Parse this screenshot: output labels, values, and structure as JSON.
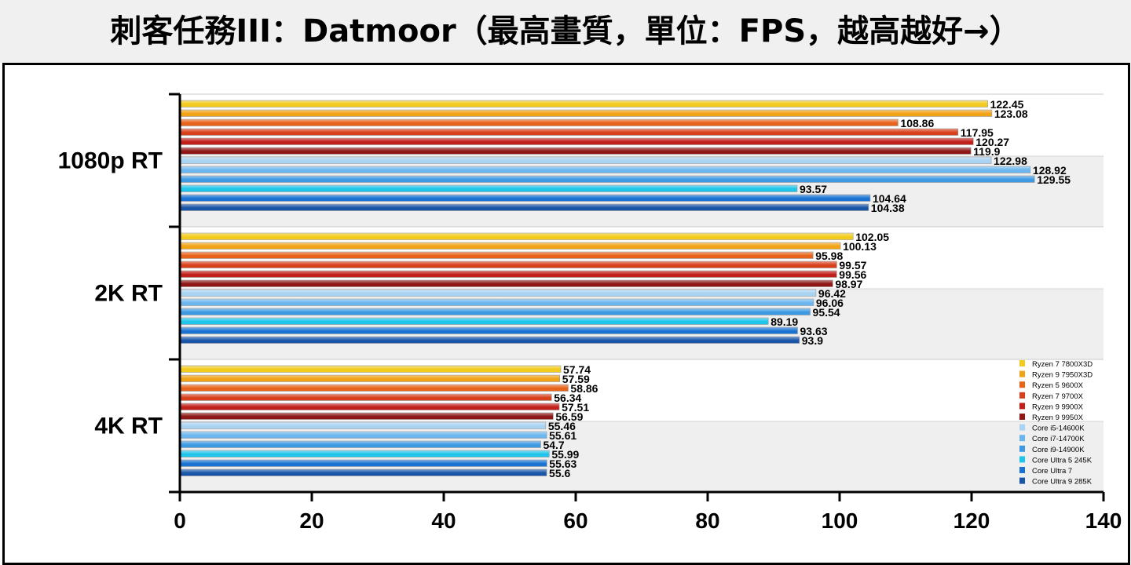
{
  "title": "刺客任務III：Datmoor（最高畫質，單位：FPS，越高越好→）",
  "colors": {
    "Ryzen 7 7800X3D": "#f2cb1d",
    "Ryzen 9 7950X3D": "#f1a316",
    "Ryzen 5 9600X": "#e8641a",
    "Ryzen 7 9700X": "#d8401c",
    "Ryzen 9 9900X": "#c11f1a",
    "Ryzen 9 9950X": "#8e1616",
    "Core i5-14600K": "#a9d3f3",
    "Core i7-14700K": "#6bb6ee",
    "Core i9-14900K": "#3d9ae2",
    "Core Ultra 5 245K": "#1ec4ea",
    "Core Ultra 7": "#1a73d2",
    "Core Ultra 9 285K": "#1854a8"
  },
  "chart_data": {
    "type": "bar",
    "orientation": "horizontal",
    "title": "刺客任務III：Datmoor（最高畫質，單位：FPS，越高越好→）",
    "categories": [
      "1080p RT",
      "2K RT",
      "4K RT"
    ],
    "xlim": [
      0,
      140
    ],
    "xticks": [
      "0",
      "20",
      "40",
      "60",
      "80",
      "100",
      "120",
      "140"
    ],
    "xticks_values": [
      0,
      20,
      40,
      60,
      80,
      100,
      120,
      140
    ],
    "legend_position": "bottom-right",
    "series": [
      {
        "name": "Ryzen 7 7800X3D",
        "values": [
          122.45,
          102.05,
          57.74
        ]
      },
      {
        "name": "Ryzen 9 7950X3D",
        "values": [
          123.08,
          100.13,
          57.59
        ]
      },
      {
        "name": "Ryzen 5 9600X",
        "values": [
          108.86,
          95.98,
          58.86
        ]
      },
      {
        "name": "Ryzen 7 9700X",
        "values": [
          117.95,
          99.57,
          56.34
        ]
      },
      {
        "name": "Ryzen 9 9900X",
        "values": [
          120.27,
          99.56,
          57.51
        ]
      },
      {
        "name": "Ryzen 9 9950X",
        "values": [
          119.9,
          98.97,
          56.59
        ]
      },
      {
        "name": "Core i5-14600K",
        "values": [
          122.98,
          96.42,
          55.46
        ]
      },
      {
        "name": "Core i7-14700K",
        "values": [
          128.92,
          96.06,
          55.61
        ]
      },
      {
        "name": "Core i9-14900K",
        "values": [
          129.55,
          95.54,
          54.7
        ]
      },
      {
        "name": "Core Ultra 5 245K",
        "values": [
          93.57,
          89.19,
          55.99
        ]
      },
      {
        "name": "Core Ultra 7",
        "values": [
          104.64,
          93.63,
          55.63
        ]
      },
      {
        "name": "Core Ultra 9 285K",
        "values": [
          104.38,
          93.9,
          55.6
        ]
      }
    ],
    "value_labels": [
      [
        "122.45",
        "102.05",
        "57.74"
      ],
      [
        "123.08",
        "100.13",
        "57.59"
      ],
      [
        "108.86",
        "95.98",
        "58.86"
      ],
      [
        "117.95",
        "99.57",
        "56.34"
      ],
      [
        "120.27",
        "99.56",
        "57.51"
      ],
      [
        "119.9",
        "98.97",
        "56.59"
      ],
      [
        "122.98",
        "96.42",
        "55.46"
      ],
      [
        "128.92",
        "96.06",
        "55.61"
      ],
      [
        "129.55",
        "95.54",
        "54.7"
      ],
      [
        "93.57",
        "89.19",
        "55.99"
      ],
      [
        "104.64",
        "93.63",
        "55.63"
      ],
      [
        "104.38",
        "93.9",
        "55.6"
      ]
    ]
  }
}
